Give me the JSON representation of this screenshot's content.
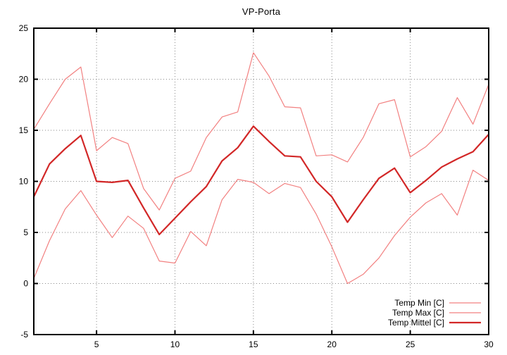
{
  "chart_data": {
    "type": "line",
    "title": "VP-Porta",
    "xlabel": "",
    "ylabel": "",
    "x": [
      1,
      2,
      3,
      4,
      5,
      6,
      7,
      8,
      9,
      10,
      11,
      12,
      13,
      14,
      15,
      16,
      17,
      18,
      19,
      20,
      21,
      22,
      23,
      24,
      25,
      26,
      27,
      28,
      29,
      30
    ],
    "xlim": [
      1,
      30
    ],
    "ylim": [
      -5,
      25
    ],
    "xticks": [
      5,
      10,
      15,
      20,
      25,
      30
    ],
    "yticks": [
      -5,
      0,
      5,
      10,
      15,
      20,
      25
    ],
    "grid": true,
    "legend_position": "bottom-right-inside",
    "series": [
      {
        "name": "Temp Min [C]",
        "color": "#f28080",
        "width": 1.2,
        "values": [
          0.5,
          4.2,
          7.3,
          9.1,
          6.7,
          4.5,
          6.6,
          5.4,
          2.2,
          2.0,
          5.1,
          3.7,
          8.2,
          10.2,
          9.9,
          8.8,
          9.8,
          9.4,
          6.8,
          3.6,
          0.0,
          0.9,
          2.5,
          4.7,
          6.5,
          7.9,
          8.8,
          6.7,
          11.1,
          10.1
        ]
      },
      {
        "name": "Temp Max [C]",
        "color": "#f28080",
        "width": 1.2,
        "values": [
          15.1,
          17.6,
          20.0,
          21.2,
          13.0,
          14.3,
          13.7,
          9.3,
          7.2,
          10.3,
          11.0,
          14.3,
          16.3,
          16.8,
          22.6,
          20.3,
          17.3,
          17.2,
          12.5,
          12.6,
          11.9,
          14.3,
          17.6,
          18.0,
          12.4,
          13.4,
          14.9,
          18.2,
          15.6,
          19.5
        ]
      },
      {
        "name": "Temp Mittel [C]",
        "color": "#d22727",
        "width": 2.2,
        "values": [
          8.5,
          11.7,
          13.2,
          14.5,
          10.0,
          9.9,
          10.1,
          7.4,
          4.8,
          6.4,
          8.0,
          9.5,
          12.0,
          13.3,
          15.4,
          13.9,
          12.5,
          12.4,
          10.0,
          8.5,
          6.0,
          8.2,
          10.3,
          11.3,
          8.9,
          10.1,
          11.4,
          12.2,
          12.9,
          14.6
        ]
      }
    ],
    "colors": {
      "border": "#000000",
      "grid": "#8a8a8a",
      "background": "#ffffff",
      "text": "#000000"
    }
  }
}
